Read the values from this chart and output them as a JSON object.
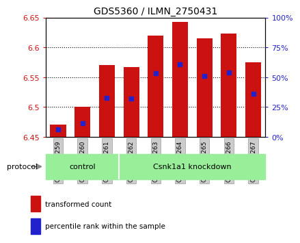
{
  "title": "GDS5360 / ILMN_2750431",
  "samples": [
    "GSM1278259",
    "GSM1278260",
    "GSM1278261",
    "GSM1278262",
    "GSM1278263",
    "GSM1278264",
    "GSM1278265",
    "GSM1278266",
    "GSM1278267"
  ],
  "bar_tops": [
    6.47,
    6.5,
    6.57,
    6.567,
    6.62,
    6.643,
    6.615,
    6.623,
    6.575
  ],
  "bar_bottom": 6.45,
  "blue_dot_values": [
    6.462,
    6.473,
    6.515,
    6.514,
    6.556,
    6.572,
    6.552,
    6.558,
    6.522
  ],
  "ylim": [
    6.45,
    6.65
  ],
  "yticks_left": [
    6.45,
    6.5,
    6.55,
    6.6,
    6.65
  ],
  "yticks_right": [
    0,
    25,
    50,
    75,
    100
  ],
  "bar_color": "#cc1111",
  "dot_color": "#2222cc",
  "n_control": 3,
  "n_knockdown": 6,
  "control_label": "control",
  "knockdown_label": "Csnk1a1 knockdown",
  "protocol_label": "protocol",
  "legend_bar_label": "transformed count",
  "legend_dot_label": "percentile rank within the sample",
  "group_bg_color": "#99ee99",
  "tick_bg_color": "#cccccc",
  "arrow_color": "#888888",
  "plot_bg_color": "#ffffff"
}
